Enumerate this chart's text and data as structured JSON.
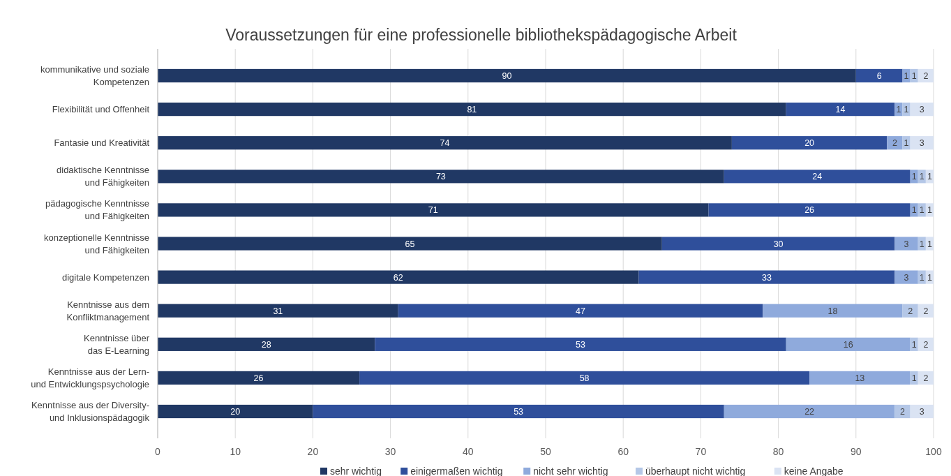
{
  "chart_data": {
    "type": "bar",
    "orientation": "horizontal",
    "stacked": true,
    "title": "Voraussetzungen für eine professionelle bibliothekspädagogische Arbeit",
    "categories": [
      "kommunikative und soziale\nKompetenzen",
      "Flexibilität und Offenheit",
      "Fantasie und Kreativität",
      "didaktische Kenntnisse\nund Fähigkeiten",
      "pädagogische Kenntnisse\nund Fähigkeiten",
      "konzeptionelle Kenntnisse\nund Fähigkeiten",
      "digitale Kompetenzen",
      "Kenntnisse aus dem\nKonfliktmanagement",
      "Kenntnisse über\ndas E-Learning",
      "Kenntnisse aus der Lern-\nund Entwicklungspsychologie",
      "Kenntnisse aus der Diversity-\nund Inklusionspädagogik"
    ],
    "series": [
      {
        "name": "sehr wichtig",
        "color": "#203864",
        "values": [
          90,
          81,
          74,
          73,
          71,
          65,
          62,
          31,
          28,
          26,
          20
        ]
      },
      {
        "name": "einigermaßen wichtig",
        "color": "#2f4f9b",
        "values": [
          6,
          14,
          20,
          24,
          26,
          30,
          33,
          47,
          53,
          58,
          53
        ]
      },
      {
        "name": "nicht sehr wichtig",
        "color": "#8faadc",
        "values": [
          1,
          1,
          2,
          1,
          1,
          3,
          3,
          18,
          16,
          13,
          22
        ]
      },
      {
        "name": "überhaupt nicht wichtig",
        "color": "#b4c7e7",
        "values": [
          1,
          1,
          1,
          1,
          1,
          1,
          1,
          2,
          1,
          1,
          2
        ]
      },
      {
        "name": "keine Angabe",
        "color": "#dae3f3",
        "values": [
          2,
          3,
          3,
          1,
          1,
          1,
          1,
          2,
          2,
          2,
          3
        ]
      }
    ],
    "xlim": [
      0,
      100
    ],
    "xticks": [
      0,
      10,
      20,
      30,
      40,
      50,
      60,
      70,
      80,
      90,
      100
    ],
    "grid": "x",
    "legend": "bottom",
    "data_labels": true
  }
}
